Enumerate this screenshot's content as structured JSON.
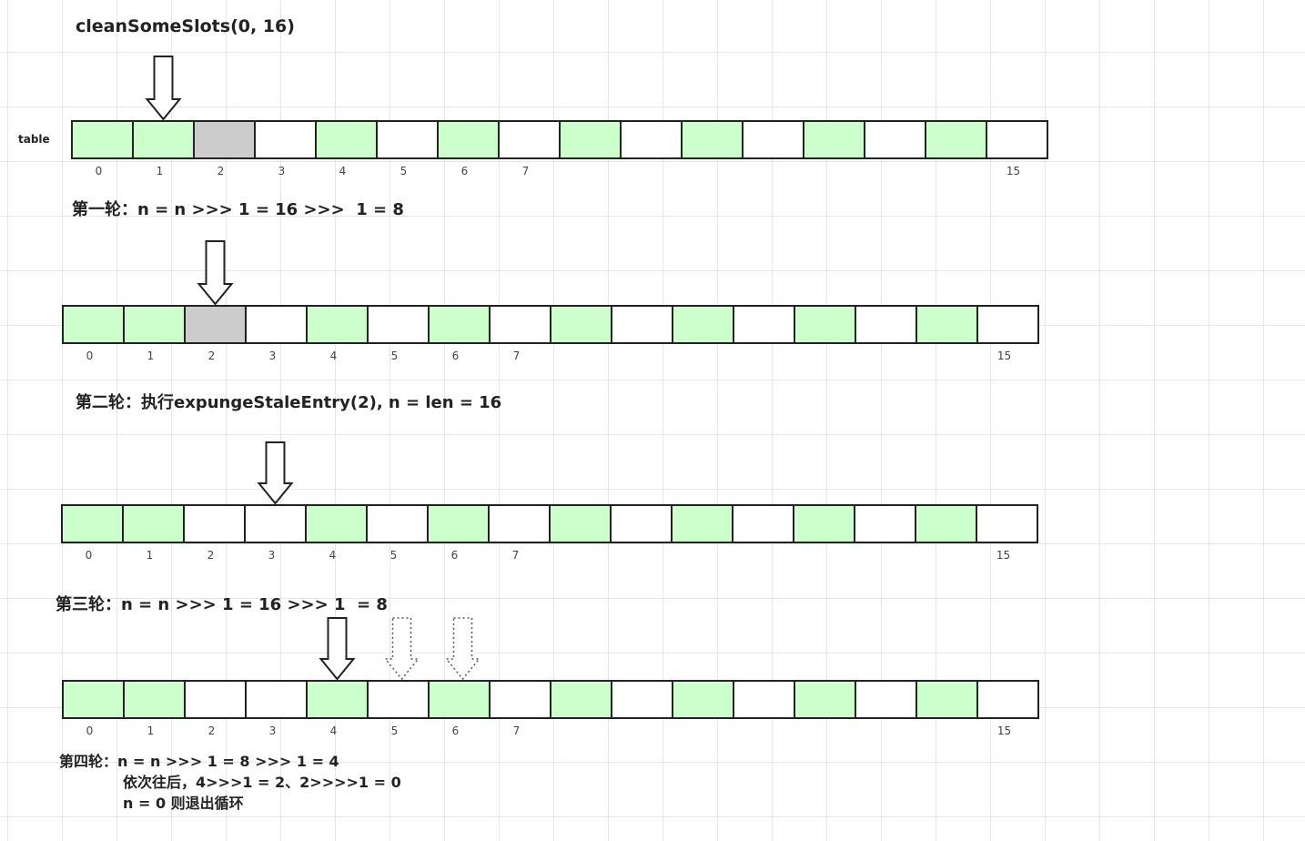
{
  "title": "cleanSomeSlots(0, 16)",
  "table_label": "table",
  "colors": {
    "live": "#ccffcc",
    "stale": "#cccccc",
    "empty": "#ffffff",
    "border": "#222222"
  },
  "index_labels": [
    "0",
    "1",
    "2",
    "3",
    "4",
    "5",
    "6",
    "7",
    "15"
  ],
  "rows": [
    {
      "cells": [
        "live",
        "live",
        "stale",
        "empty",
        "live",
        "empty",
        "live",
        "empty",
        "live",
        "empty",
        "live",
        "empty",
        "live",
        "empty",
        "live",
        "empty"
      ],
      "arrow_at": 1,
      "dotted_arrows_at": []
    },
    {
      "cells": [
        "live",
        "live",
        "stale",
        "empty",
        "live",
        "empty",
        "live",
        "empty",
        "live",
        "empty",
        "live",
        "empty",
        "live",
        "empty",
        "live",
        "empty"
      ],
      "arrow_at": 2,
      "dotted_arrows_at": []
    },
    {
      "cells": [
        "live",
        "live",
        "empty",
        "empty",
        "live",
        "empty",
        "live",
        "empty",
        "live",
        "empty",
        "live",
        "empty",
        "live",
        "empty",
        "live",
        "empty"
      ],
      "arrow_at": 3,
      "dotted_arrows_at": []
    },
    {
      "cells": [
        "live",
        "live",
        "empty",
        "empty",
        "live",
        "empty",
        "live",
        "empty",
        "live",
        "empty",
        "live",
        "empty",
        "live",
        "empty",
        "live",
        "empty"
      ],
      "arrow_at": 4,
      "dotted_arrows_at": [
        5,
        6
      ]
    }
  ],
  "steps": {
    "round1": "第一轮：n = n >>> 1 = 16 >>>  1 = 8",
    "round2": "第二轮：执行expungeStaleEntry(2), n = len = 16",
    "round3": "第三轮：n = n >>> 1 = 16 >>> 1  = 8",
    "round4_line1": "第四轮：n = n >>> 1 = 8 >>> 1 = 4",
    "round4_line2": "依次往后，4>>>1 = 2、2>>>>1 = 0",
    "round4_line3": "n = 0 则退出循环"
  }
}
